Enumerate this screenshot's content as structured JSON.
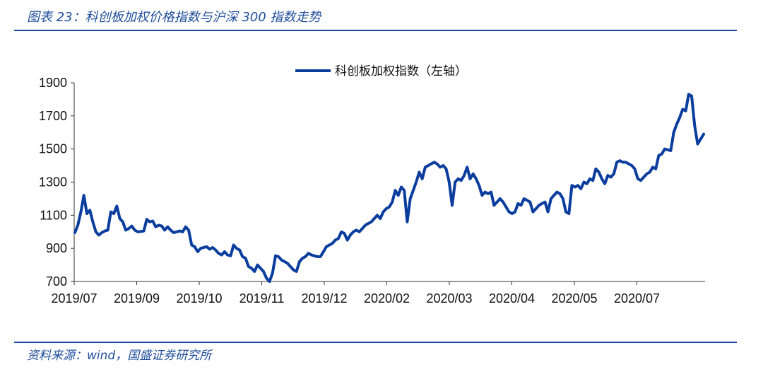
{
  "header": {
    "caption": "图表 23：科创板加权价格指数与沪深 300 指数走势"
  },
  "footer": {
    "source": "资料来源：wind，国盛证券研究所"
  },
  "colors": {
    "accent": "#1f4e9b",
    "series": "#0a3d9e"
  },
  "chart_data": {
    "type": "line",
    "title": "",
    "xlabel": "",
    "ylabel": "",
    "ylim": [
      700,
      1900
    ],
    "yticks": [
      700,
      900,
      1100,
      1300,
      1500,
      1700,
      1900
    ],
    "xticks": [
      "2019/07",
      "2019/09",
      "2019/10",
      "2019/11",
      "2019/12",
      "2020/02",
      "2020/03",
      "2020/04",
      "2020/05",
      "2020/07"
    ],
    "legend": "top-center",
    "grid": false,
    "series": [
      {
        "name": "科创板加权指数（左轴）",
        "values": [
          995,
          1040,
          1120,
          1220,
          1110,
          1130,
          1060,
          1000,
          980,
          995,
          1005,
          1010,
          1120,
          1110,
          1155,
          1080,
          1060,
          1010,
          1020,
          1035,
          1010,
          1000,
          1002,
          1005,
          1075,
          1060,
          1065,
          1030,
          1040,
          1035,
          1010,
          1030,
          1010,
          995,
          1000,
          1005,
          1000,
          1030,
          1010,
          920,
          910,
          880,
          900,
          905,
          910,
          895,
          905,
          890,
          870,
          860,
          880,
          860,
          855,
          920,
          900,
          890,
          850,
          840,
          790,
          780,
          760,
          800,
          780,
          760,
          720,
          700,
          750,
          855,
          850,
          830,
          820,
          810,
          790,
          770,
          760,
          820,
          840,
          850,
          870,
          860,
          855,
          850,
          850,
          880,
          910,
          920,
          930,
          950,
          960,
          1000,
          990,
          950,
          980,
          1000,
          1010,
          1000,
          1020,
          1040,
          1050,
          1060,
          1080,
          1100,
          1080,
          1120,
          1140,
          1150,
          1180,
          1250,
          1220,
          1270,
          1250,
          1060,
          1200,
          1250,
          1300,
          1360,
          1320,
          1390,
          1400,
          1410,
          1420,
          1410,
          1390,
          1400,
          1380,
          1300,
          1160,
          1300,
          1320,
          1310,
          1340,
          1390,
          1320,
          1350,
          1320,
          1280,
          1220,
          1240,
          1230,
          1240,
          1160,
          1180,
          1200,
          1180,
          1150,
          1120,
          1110,
          1120,
          1170,
          1160,
          1200,
          1190,
          1180,
          1120,
          1140,
          1160,
          1170,
          1180,
          1120,
          1200,
          1220,
          1240,
          1230,
          1200,
          1120,
          1110,
          1280,
          1270,
          1280,
          1260,
          1300,
          1290,
          1320,
          1310,
          1380,
          1360,
          1320,
          1290,
          1340,
          1330,
          1350,
          1420,
          1430,
          1420,
          1420,
          1410,
          1400,
          1380,
          1320,
          1310,
          1330,
          1350,
          1360,
          1390,
          1380,
          1460,
          1470,
          1500,
          1495,
          1490,
          1600,
          1650,
          1690,
          1740,
          1730,
          1830,
          1820,
          1640,
          1530,
          1560,
          1590
        ]
      }
    ]
  }
}
